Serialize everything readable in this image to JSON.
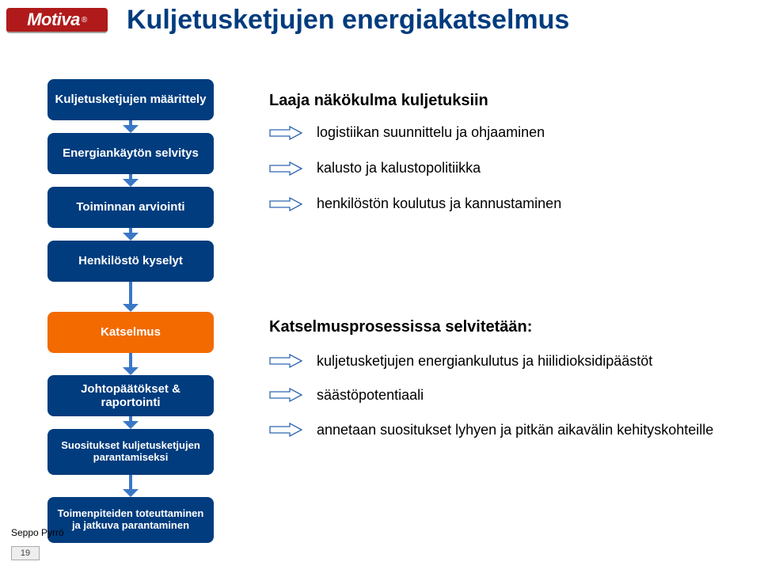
{
  "logo_text": "Motiva",
  "title": "Kuljetusketjujen energiakatselmus",
  "flow": {
    "stage_bg": "#003c7e",
    "stage_highlight_bg": "#f26a00",
    "arrow_color": "#3a77c7",
    "stages": [
      {
        "label": "Kuljetusketjujen määrittely",
        "highlight": false
      },
      {
        "label": "Energiankäytön selvitys",
        "highlight": false
      },
      {
        "label": "Toiminnan arviointi",
        "highlight": false
      },
      {
        "label": "Henkilöstö kyselyt",
        "highlight": false
      },
      {
        "label": "Katselmus",
        "highlight": true
      },
      {
        "label": "Johtopäätökset & raportointi",
        "highlight": false
      },
      {
        "label": "Suositukset kuljetusketjujen parantamiseksi",
        "highlight": false
      },
      {
        "label": "Toimenpiteiden toteuttaminen ja jatkuva parantaminen",
        "highlight": false
      }
    ],
    "connectors": [
      {
        "stem_h": 6
      },
      {
        "stem_h": 6
      },
      {
        "stem_h": 6
      },
      {
        "stem_h": 28
      },
      {
        "stem_h": 18
      },
      {
        "stem_h": 6
      },
      {
        "stem_h": 18
      }
    ]
  },
  "arrow_icon": {
    "outline": "#2e66b0",
    "fill": "#ffffff"
  },
  "upper": {
    "heading": "Laaja näkökulma kuljetuksiin",
    "items": [
      "logistiikan suunnittelu ja ohjaaminen",
      "kalusto ja kalustopolitiikka",
      "henkilöstön koulutus ja kannustaminen"
    ]
  },
  "lower": {
    "heading": "Katselmusprosessissa selvitetään:",
    "items": [
      "kuljetusketjujen energiankulutus ja hiilidioksidipäästöt",
      "säästöpotentiaali",
      "annetaan suositukset lyhyen ja pitkän aikavälin kehityskohteille"
    ]
  },
  "footer": {
    "author": "Seppo Pyrrö",
    "page": "19"
  }
}
